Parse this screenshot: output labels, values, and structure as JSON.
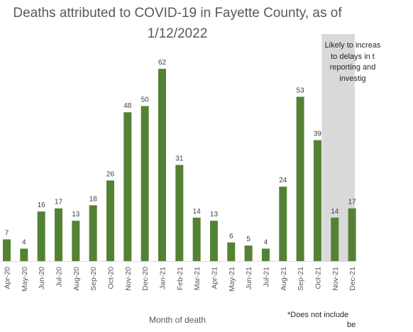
{
  "chart_data": {
    "type": "bar",
    "title_line1": "Deaths attributed to COVID-19 in Fayette County, as of",
    "title_line2": "1/12/2022",
    "xlabel": "Month of death",
    "ylabel": "",
    "categories": [
      "Apr-20",
      "May-20",
      "Jun-20",
      "Jul-20",
      "Aug-20",
      "Sep-20",
      "Oct-20",
      "Nov-20",
      "Dec-20",
      "Jan-21",
      "Feb-21",
      "Mar-21",
      "Apr-21",
      "May-21",
      "Jun-21",
      "Jul-21",
      "Aug-21",
      "Sep-21",
      "Oct-21",
      "Nov-21",
      "Dec-21"
    ],
    "values": [
      7,
      4,
      16,
      17,
      13,
      18,
      26,
      48,
      50,
      62,
      31,
      14,
      13,
      6,
      5,
      4,
      24,
      53,
      39,
      14,
      17
    ],
    "data_labels": [
      "7",
      "4",
      "16",
      "17",
      "13",
      "18",
      "26",
      "48",
      "50",
      "62",
      "31",
      "14",
      "13",
      "6",
      "5",
      "4",
      "24",
      "53",
      "39",
      "14",
      "17"
    ],
    "ylim": [
      0,
      70
    ],
    "grid": false,
    "bar_color": "#548235",
    "shade_color": "#d9d9d9",
    "shaded_from_category": "Oct-21",
    "annotation_lines": [
      "Likely to increas",
      "to delays in t",
      "reporting and",
      "investig"
    ],
    "footnote_lines": [
      "*Does not include",
      "be"
    ]
  }
}
